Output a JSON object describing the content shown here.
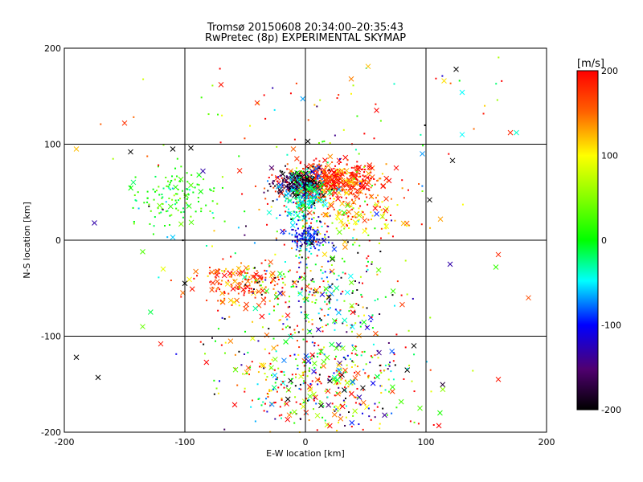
{
  "chart_data": {
    "type": "scatter",
    "title": "Tromsø 20150608 20:34:00–20:35:43",
    "subtitle": "RwPretec (8p) EXPERIMENTAL SKYMAP",
    "xlabel": "E-W location [km]",
    "ylabel": "N-S location [km]",
    "xlim": [
      -200,
      200
    ],
    "ylim": [
      -200,
      200
    ],
    "xticks": [
      -200,
      -100,
      0,
      100,
      200
    ],
    "yticks": [
      -200,
      -100,
      0,
      100,
      200
    ],
    "grid": true,
    "colorbar": {
      "label": "[m/s]",
      "min": -200,
      "max": 200,
      "ticks": [
        200,
        100,
        0,
        -100,
        -200
      ]
    },
    "markers": [
      "dot",
      "x"
    ],
    "sample_points": [
      {
        "x": -70,
        "y": 162,
        "v": 190,
        "m": "x"
      },
      {
        "x": -40,
        "y": 143,
        "v": 180,
        "m": "x"
      },
      {
        "x": -150,
        "y": 122,
        "v": 175,
        "m": "x"
      },
      {
        "x": -190,
        "y": 95,
        "v": 120,
        "m": "x"
      },
      {
        "x": -145,
        "y": 92,
        "v": -200,
        "m": "x"
      },
      {
        "x": -110,
        "y": 95,
        "v": -200,
        "m": "x"
      },
      {
        "x": -95,
        "y": 96,
        "v": -200,
        "m": "x"
      },
      {
        "x": -175,
        "y": 18,
        "v": -130,
        "m": "x"
      },
      {
        "x": -110,
        "y": 3,
        "v": -60,
        "m": "x"
      },
      {
        "x": -85,
        "y": 72,
        "v": -130,
        "m": "x"
      },
      {
        "x": 38,
        "y": 168,
        "v": 140,
        "m": "x"
      },
      {
        "x": 52,
        "y": 181,
        "v": 120,
        "m": "x"
      },
      {
        "x": 115,
        "y": 166,
        "v": 110,
        "m": "x"
      },
      {
        "x": 130,
        "y": 154,
        "v": -50,
        "m": "x"
      },
      {
        "x": 125,
        "y": 178,
        "v": -200,
        "m": "x"
      },
      {
        "x": 130,
        "y": 110,
        "v": -50,
        "m": "x"
      },
      {
        "x": 170,
        "y": 112,
        "v": 180,
        "m": "x"
      },
      {
        "x": 175,
        "y": 112,
        "v": -40,
        "m": "x"
      },
      {
        "x": 122,
        "y": 83,
        "v": -200,
        "m": "x"
      },
      {
        "x": 97,
        "y": 90,
        "v": -70,
        "m": "x"
      },
      {
        "x": 103,
        "y": 42,
        "v": -200,
        "m": "x"
      },
      {
        "x": 112,
        "y": 22,
        "v": 130,
        "m": "x"
      },
      {
        "x": 120,
        "y": -25,
        "v": -130,
        "m": "x"
      },
      {
        "x": 160,
        "y": -15,
        "v": 180,
        "m": "x"
      },
      {
        "x": 158,
        "y": -28,
        "v": 20,
        "m": "x"
      },
      {
        "x": 185,
        "y": -60,
        "v": 160,
        "m": "x"
      },
      {
        "x": -135,
        "y": -12,
        "v": 30,
        "m": "x"
      },
      {
        "x": -118,
        "y": -30,
        "v": 90,
        "m": "x"
      },
      {
        "x": -100,
        "y": -45,
        "v": -200,
        "m": "x"
      },
      {
        "x": -135,
        "y": -90,
        "v": 40,
        "m": "x"
      },
      {
        "x": -120,
        "y": -108,
        "v": 190,
        "m": "x"
      },
      {
        "x": -190,
        "y": -122,
        "v": -200,
        "m": "x"
      },
      {
        "x": -172,
        "y": -143,
        "v": -200,
        "m": "x"
      },
      {
        "x": 160,
        "y": -145,
        "v": 190,
        "m": "x"
      },
      {
        "x": 90,
        "y": -110,
        "v": -200,
        "m": "x"
      },
      {
        "x": 95,
        "y": -175,
        "v": 30,
        "m": "x"
      },
      {
        "x": 2,
        "y": 103,
        "v": -200,
        "m": "x"
      },
      {
        "x": -10,
        "y": 95,
        "v": 150,
        "m": "x"
      }
    ]
  }
}
